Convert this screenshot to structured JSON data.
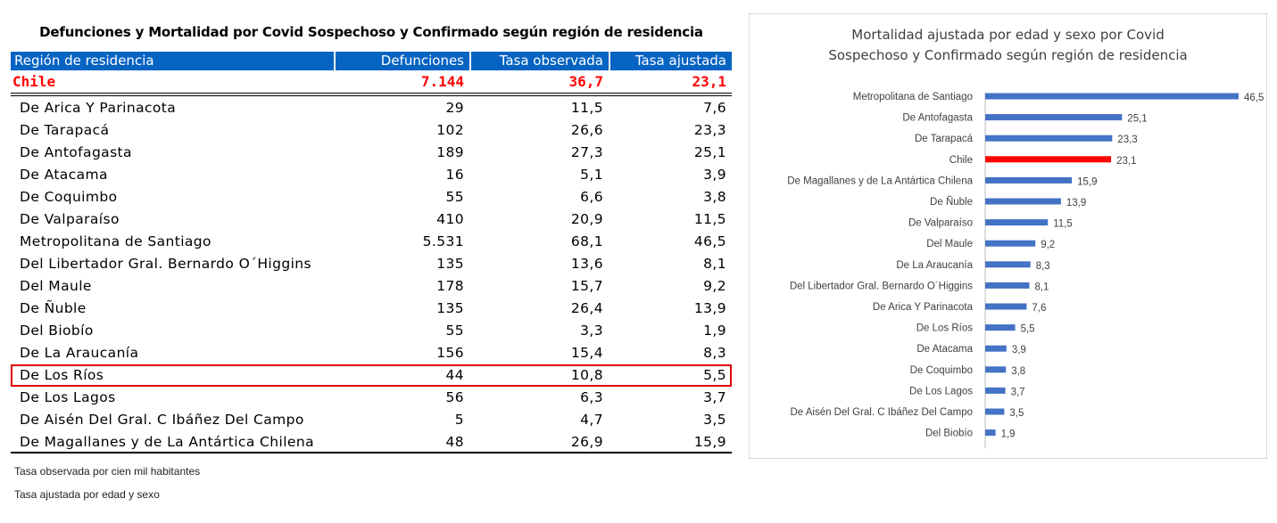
{
  "table": {
    "title": "Defunciones y Mortalidad por Covid Sospechoso y Confirmado  según región de residencia",
    "headers": [
      "Región de residencia",
      "Defunciones",
      "Tasa observada",
      "Tasa ajustada"
    ],
    "total": {
      "region": "Chile",
      "defunciones": "7.144",
      "tasa_observada": "36,7",
      "tasa_ajustada": "23,1"
    },
    "rows": [
      {
        "region": "De Arica Y Parinacota",
        "defunciones": "29",
        "tasa_observada": "11,5",
        "tasa_ajustada": "7,6"
      },
      {
        "region": "De Tarapacá",
        "defunciones": "102",
        "tasa_observada": "26,6",
        "tasa_ajustada": "23,3"
      },
      {
        "region": "De Antofagasta",
        "defunciones": "189",
        "tasa_observada": "27,3",
        "tasa_ajustada": "25,1"
      },
      {
        "region": "De Atacama",
        "defunciones": "16",
        "tasa_observada": "5,1",
        "tasa_ajustada": "3,9"
      },
      {
        "region": "De Coquimbo",
        "defunciones": "55",
        "tasa_observada": "6,6",
        "tasa_ajustada": "3,8"
      },
      {
        "region": "De Valparaíso",
        "defunciones": "410",
        "tasa_observada": "20,9",
        "tasa_ajustada": "11,5"
      },
      {
        "region": "Metropolitana de Santiago",
        "defunciones": "5.531",
        "tasa_observada": "68,1",
        "tasa_ajustada": "46,5"
      },
      {
        "region": "Del Libertador Gral. Bernardo O´Higgins",
        "defunciones": "135",
        "tasa_observada": "13,6",
        "tasa_ajustada": "8,1"
      },
      {
        "region": "Del Maule",
        "defunciones": "178",
        "tasa_observada": "15,7",
        "tasa_ajustada": "9,2"
      },
      {
        "region": "De Ñuble",
        "defunciones": "135",
        "tasa_observada": "26,4",
        "tasa_ajustada": "13,9"
      },
      {
        "region": "Del Biobío",
        "defunciones": "55",
        "tasa_observada": "3,3",
        "tasa_ajustada": "1,9"
      },
      {
        "region": "De La Araucanía",
        "defunciones": "156",
        "tasa_observada": "15,4",
        "tasa_ajustada": "8,3"
      },
      {
        "region": "De Los Ríos",
        "defunciones": "44",
        "tasa_observada": "10,8",
        "tasa_ajustada": "5,5",
        "highlighted": true
      },
      {
        "region": "De Los Lagos",
        "defunciones": "56",
        "tasa_observada": "6,3",
        "tasa_ajustada": "3,7"
      },
      {
        "region": "De Aisén Del Gral. C Ibáñez Del Campo",
        "defunciones": "5",
        "tasa_observada": "4,7",
        "tasa_ajustada": "3,5"
      },
      {
        "region": "De Magallanes y de La Antártica Chilena",
        "defunciones": "48",
        "tasa_observada": "26,9",
        "tasa_ajustada": "15,9"
      }
    ],
    "notes": [
      "Tasa observada por cien mil habitantes",
      "Tasa ajustada por edad y sexo"
    ],
    "colors": {
      "header_bg": "#0563c1",
      "total_text": "#ff0000",
      "highlight_border": "#e00000"
    }
  },
  "chart_data": {
    "type": "bar",
    "orientation": "horizontal",
    "title_lines": [
      "Mortalidad ajustada por edad y sexo por Covid",
      "Sospechoso y Confirmado según región de residencia"
    ],
    "categories": [
      "Metropolitana de Santiago",
      "De Antofagasta",
      "De Tarapacá",
      "Chile",
      "De Magallanes y de La Antártica Chilena",
      "De Ñuble",
      "De Valparaíso",
      "Del Maule",
      "De La Araucanía",
      "Del Libertador Gral. Bernardo O´Higgins",
      "De Arica Y Parinacota",
      "De Los Ríos",
      "De Atacama",
      "De Coquimbo",
      "De Los Lagos",
      "De Aisén Del Gral. C Ibáñez Del Campo",
      "Del Biobío"
    ],
    "values": [
      46.5,
      25.1,
      23.3,
      23.1,
      15.9,
      13.9,
      11.5,
      9.2,
      8.3,
      8.1,
      7.6,
      5.5,
      3.9,
      3.8,
      3.7,
      3.5,
      1.9
    ],
    "value_labels": [
      "46,5",
      "25,1",
      "23,3",
      "23,1",
      "15,9",
      "13,9",
      "11,5",
      "9,2",
      "8,3",
      "8,1",
      "7,6",
      "5,5",
      "3,9",
      "3,8",
      "3,7",
      "3,5",
      "1,9"
    ],
    "highlight_category": "Chile",
    "bar_color": "#4472c4",
    "highlight_color": "#ff0000",
    "axis_color": "#bfbfbf",
    "xlim": [
      0,
      46.5
    ],
    "grid": false,
    "legend": "none"
  }
}
